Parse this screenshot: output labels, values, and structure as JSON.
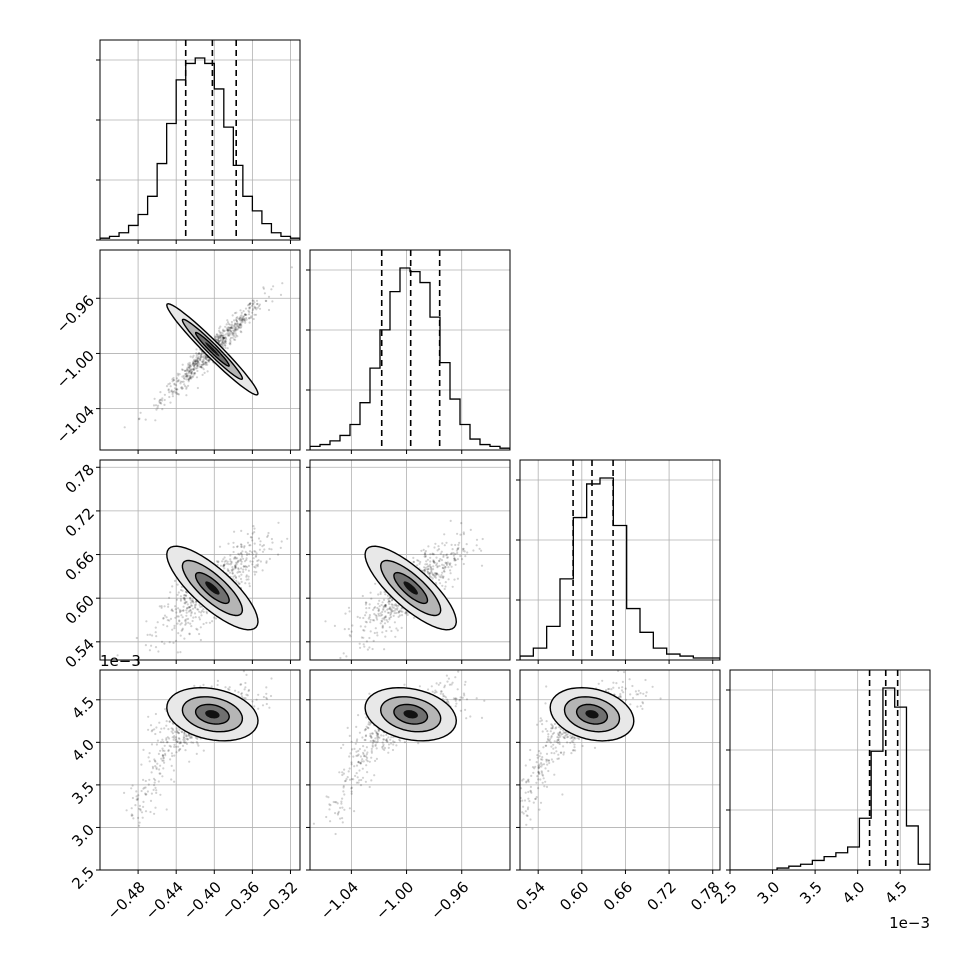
{
  "chart_data": {
    "type": "corner",
    "params": [
      {
        "range": [
          -0.52,
          -0.31
        ],
        "ticks": [
          "−0.48",
          "−0.44",
          "−0.40",
          "−0.36",
          "−0.32"
        ],
        "tick_values": [
          -0.48,
          -0.44,
          -0.4,
          -0.36,
          -0.32
        ]
      },
      {
        "range": [
          -1.07,
          -0.925
        ],
        "ticks": [
          "−1.04",
          "−1.00",
          "−0.96"
        ],
        "tick_values": [
          -1.04,
          -1.0,
          -0.96
        ]
      },
      {
        "range": [
          0.515,
          0.79
        ],
        "ticks": [
          "0.54",
          "0.60",
          "0.66",
          "0.72",
          "0.78"
        ],
        "tick_values": [
          0.54,
          0.6,
          0.66,
          0.72,
          0.78
        ]
      },
      {
        "range": [
          2.5,
          4.85
        ],
        "ticks": [
          "2.5",
          "3.0",
          "3.5",
          "4.0",
          "4.5"
        ],
        "tick_values": [
          2.5,
          3.0,
          3.5,
          4.0,
          4.5
        ],
        "offset_text": "1e−3"
      }
    ],
    "histograms": [
      {
        "counts": [
          1,
          2,
          4,
          8,
          14,
          24,
          42,
          64,
          88,
          97,
          100,
          97,
          83,
          62,
          41,
          24,
          16,
          9,
          4,
          2,
          1
        ],
        "quantiles": [
          -0.43,
          -0.402,
          -0.377
        ]
      },
      {
        "counts": [
          2,
          3,
          5,
          8,
          14,
          26,
          45,
          66,
          87,
          100,
          98,
          92,
          73,
          48,
          28,
          14,
          6,
          3,
          2,
          1
        ],
        "quantiles": [
          -1.018,
          -0.997,
          -0.976
        ]
      },
      {
        "counts": [
          2,
          6,
          17,
          41,
          72,
          89,
          92,
          68,
          26,
          14,
          6,
          3,
          2,
          1,
          1
        ],
        "quantiles": [
          0.588,
          0.614,
          0.643
        ]
      },
      {
        "counts": [
          0,
          0,
          0,
          0,
          1,
          2,
          3,
          5,
          7,
          9,
          12,
          27,
          62,
          95,
          85,
          23,
          3
        ],
        "quantiles": [
          4.14,
          4.33,
          4.47
        ]
      }
    ],
    "correlations": [
      [
        1,
        0.97,
        0.8,
        0.55
      ],
      [
        0.97,
        1,
        0.8,
        0.55
      ],
      [
        0.8,
        0.8,
        1,
        0.55
      ],
      [
        0.55,
        0.55,
        0.55,
        1
      ]
    ],
    "grid": true
  }
}
